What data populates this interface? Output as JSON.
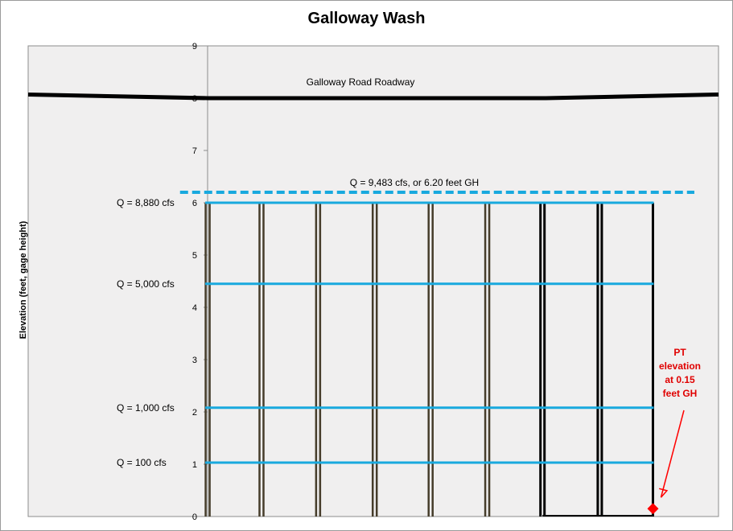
{
  "chart_data": {
    "type": "line",
    "title": "Galloway Wash",
    "ylabel": "Elevation (feet, gage height)",
    "xlabel": "",
    "ylim": [
      0,
      9
    ],
    "yticks": [
      0,
      1,
      2,
      3,
      4,
      5,
      6,
      7,
      8,
      9
    ],
    "grid": false,
    "colors": {
      "plot_bg": "#f0efef",
      "roadway": "#000000",
      "flow_lines": "#19a9de",
      "piers": "#463d2b",
      "pier_black": "#000000",
      "pt_marker": "#ff0000",
      "pt_text": "#e00000"
    },
    "roadway": {
      "label": "Galloway Road Roadway",
      "profile_x": [
        0,
        0.26,
        0.75,
        1.0
      ],
      "profile_y": [
        8.07,
        8.0,
        8.0,
        8.07
      ]
    },
    "flood_line": {
      "label": "Q = 9,483  cfs, or 6.20  feet GH",
      "elevation": 6.2,
      "x_range": [
        0.22,
        0.965
      ],
      "dashed": true
    },
    "flow_lines": [
      {
        "label": "Q = 8,880  cfs",
        "elevation": 6.0
      },
      {
        "label": "Q = 5,000  cfs",
        "elevation": 4.45
      },
      {
        "label": "Q = 1,000  cfs",
        "elevation": 2.08
      },
      {
        "label": "Q = 100  cfs",
        "elevation": 1.03
      }
    ],
    "piers": [
      {
        "x": 0.26,
        "top": 6.0,
        "bottom": 0,
        "color": "brown"
      },
      {
        "x": 0.338,
        "top": 6.0,
        "bottom": 0,
        "color": "brown"
      },
      {
        "x": 0.42,
        "top": 6.0,
        "bottom": 0,
        "color": "brown"
      },
      {
        "x": 0.502,
        "top": 6.0,
        "bottom": 0,
        "color": "brown"
      },
      {
        "x": 0.583,
        "top": 6.0,
        "bottom": 0,
        "color": "brown"
      },
      {
        "x": 0.665,
        "top": 6.0,
        "bottom": 0,
        "color": "brown"
      },
      {
        "x": 0.745,
        "top": 6.0,
        "bottom": 0,
        "color": "black"
      },
      {
        "x": 0.828,
        "top": 6.0,
        "bottom": 0,
        "color": "black"
      },
      {
        "x": 0.905,
        "top": 6.0,
        "bottom": 0,
        "color": "black-single"
      }
    ],
    "pt_marker": {
      "x": 0.905,
      "elevation": 0.15
    },
    "annotation": {
      "lines": [
        "PT",
        "elevation",
        "at 0.15",
        "feet GH"
      ],
      "arrow_to": {
        "x": 0.905,
        "elevation": 0.15
      }
    }
  }
}
